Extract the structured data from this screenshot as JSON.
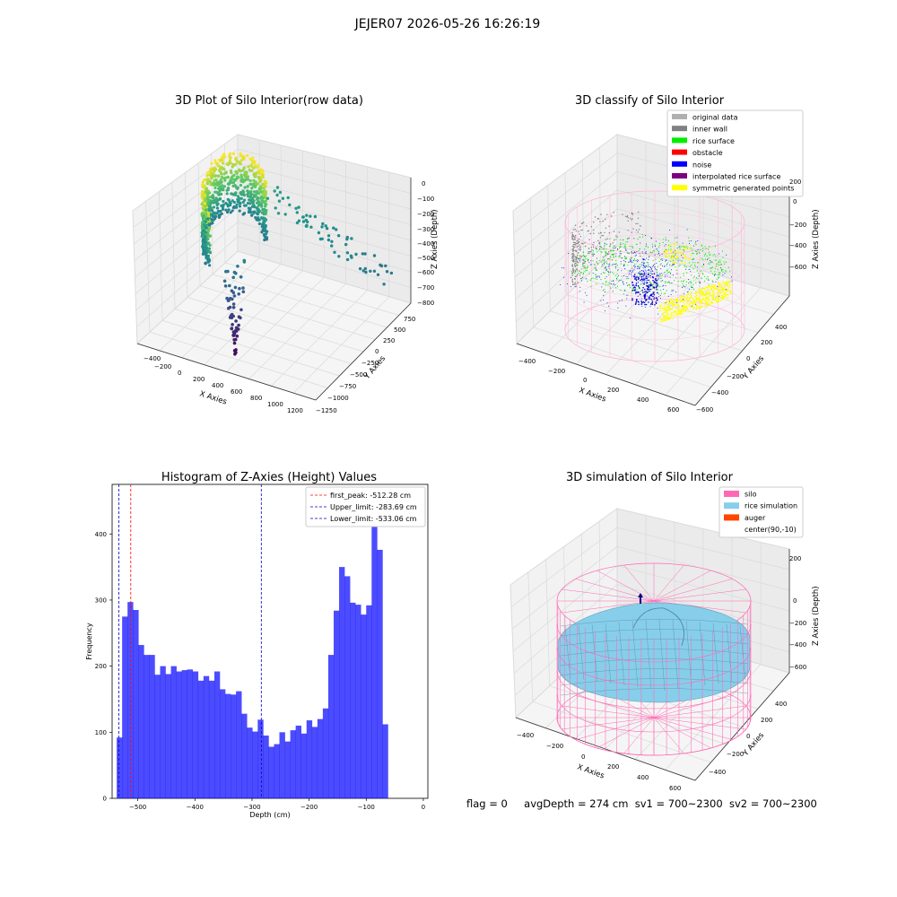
{
  "figure": {
    "suptitle": "JEJER07 2026-05-26 16:26:19"
  },
  "panels": {
    "raw": {
      "title": "3D Plot of Silo Interior(row data)",
      "xlabel": "X Axies",
      "ylabel": "Y Axies",
      "zlabel": "Z Axies (Depth)",
      "xticks": [
        "−400",
        "−200",
        "0",
        "200",
        "400",
        "600",
        "800",
        "1000",
        "1200"
      ],
      "yticks": [
        "−1250",
        "−1000",
        "−750",
        "−500",
        "−250",
        "0",
        "250",
        "500",
        "750"
      ],
      "zticks": [
        "0",
        "−100",
        "−200",
        "−300",
        "−400",
        "−500",
        "−600",
        "−700",
        "−800"
      ]
    },
    "classify": {
      "title": "3D classify of Silo Interior",
      "xlabel": "X Axies",
      "ylabel": "Y Axies",
      "zlabel": "Z Axies (Depth)",
      "xticks": [
        "−400",
        "−200",
        "0",
        "200",
        "400",
        "600"
      ],
      "yticks": [
        "−600",
        "−400",
        "−200",
        "0",
        "200",
        "400"
      ],
      "zticks": [
        "200",
        "0",
        "−200",
        "−400",
        "−600"
      ],
      "legend": [
        {
          "label": "original data",
          "color": "#b0b0b0"
        },
        {
          "label": "inner wall",
          "color": "#808080"
        },
        {
          "label": "rice surface",
          "color": "#00ee00"
        },
        {
          "label": "obstacle",
          "color": "#ff0000"
        },
        {
          "label": "noise",
          "color": "#0000ff"
        },
        {
          "label": "interpolated rice surface",
          "color": "#800080"
        },
        {
          "label": "symmetric generated points",
          "color": "#ffff00"
        }
      ]
    },
    "simulation": {
      "title": "3D simulation of Silo Interior",
      "xlabel": "X Axies",
      "ylabel": "Y Axies",
      "zlabel": "Z Axies (Depth)",
      "xticks": [
        "−400",
        "−200",
        "0",
        "200",
        "400",
        "600"
      ],
      "yticks": [
        "−400",
        "−200",
        "0",
        "200",
        "400"
      ],
      "zticks": [
        "200",
        "0",
        "−200",
        "−400",
        "−600"
      ],
      "legend": [
        {
          "label": "silo",
          "color": "#ff69b4"
        },
        {
          "label": "rice simulation",
          "color": "#87ceeb"
        },
        {
          "label": "auger",
          "color": "#ff4500"
        },
        {
          "label": "center(90,-10)",
          "color": "none"
        }
      ]
    }
  },
  "chart_data": {
    "type": "bar",
    "title": "Histogram of Z-Axies (Height) Values",
    "xlabel": "Depth (cm)",
    "ylabel": "Frequency",
    "xlim": [
      -545,
      8
    ],
    "ylim": [
      0,
      475
    ],
    "xticks": [
      -500,
      -400,
      -300,
      -200,
      -100,
      0
    ],
    "yticks": [
      0,
      100,
      200,
      300,
      400
    ],
    "bar_color": "#0000ff",
    "bins": {
      "start": -537,
      "width": 9.5,
      "counts": [
        92,
        275,
        297,
        285,
        232,
        217,
        217,
        187,
        200,
        188,
        200,
        192,
        194,
        195,
        192,
        178,
        185,
        178,
        192,
        165,
        158,
        157,
        162,
        128,
        107,
        101,
        119,
        95,
        78,
        82,
        100,
        86,
        103,
        110,
        98,
        118,
        108,
        120,
        136,
        217,
        284,
        350,
        336,
        296,
        293,
        278,
        292,
        451,
        376,
        112
      ]
    },
    "vlines": [
      {
        "label": "first_peak: -512.28 cm",
        "x": -512.28,
        "color": "#ff0000"
      },
      {
        "label": "Upper_limit: -283.69 cm",
        "x": -283.69,
        "color": "#0000cc"
      },
      {
        "label": "Lower_limit: -533.06 cm",
        "x": -533.06,
        "color": "#0000cc"
      }
    ],
    "legend_position": "top-right"
  },
  "footer": {
    "flag": "flag = 0",
    "avg_depth": "avgDepth = 274 cm",
    "sv1": "sv1 = 700~2300",
    "sv2": "sv2 = 700~2300"
  }
}
